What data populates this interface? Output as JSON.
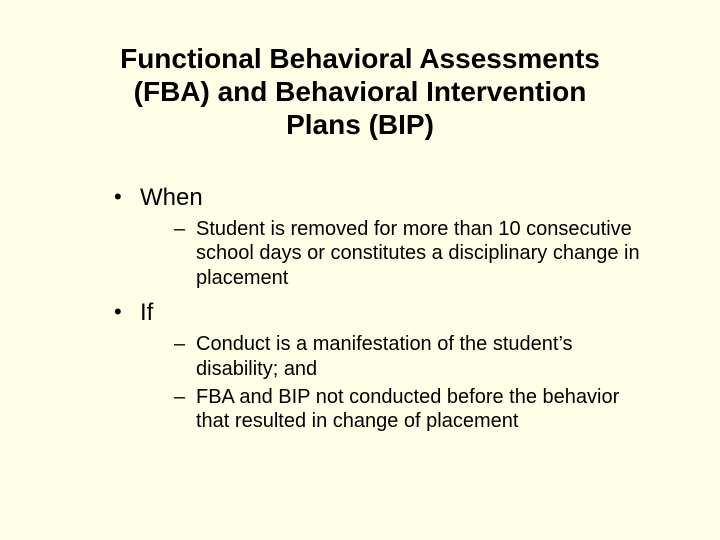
{
  "background_color": "#ffffe7",
  "text_color": "#000000",
  "font_family": "Arial",
  "title": {
    "line1": "Functional Behavioral Assessments",
    "line2": "(FBA) and Behavioral Intervention",
    "line3": "Plans (BIP)",
    "fontsize": 28,
    "font_weight": "bold",
    "align": "center"
  },
  "bullets": {
    "level1": [
      {
        "label": "When",
        "sub": [
          "Student is removed for more than 10 consecutive school days or constitutes a disciplinary change in placement"
        ]
      },
      {
        "label": "If",
        "sub": [
          "Conduct is a manifestation of the student’s disability; and",
          "FBA and BIP not conducted before the behavior that resulted in change of placement"
        ]
      }
    ],
    "level1_fontsize": 24,
    "level2_fontsize": 20,
    "level1_marker": "•",
    "level2_marker": "–"
  }
}
